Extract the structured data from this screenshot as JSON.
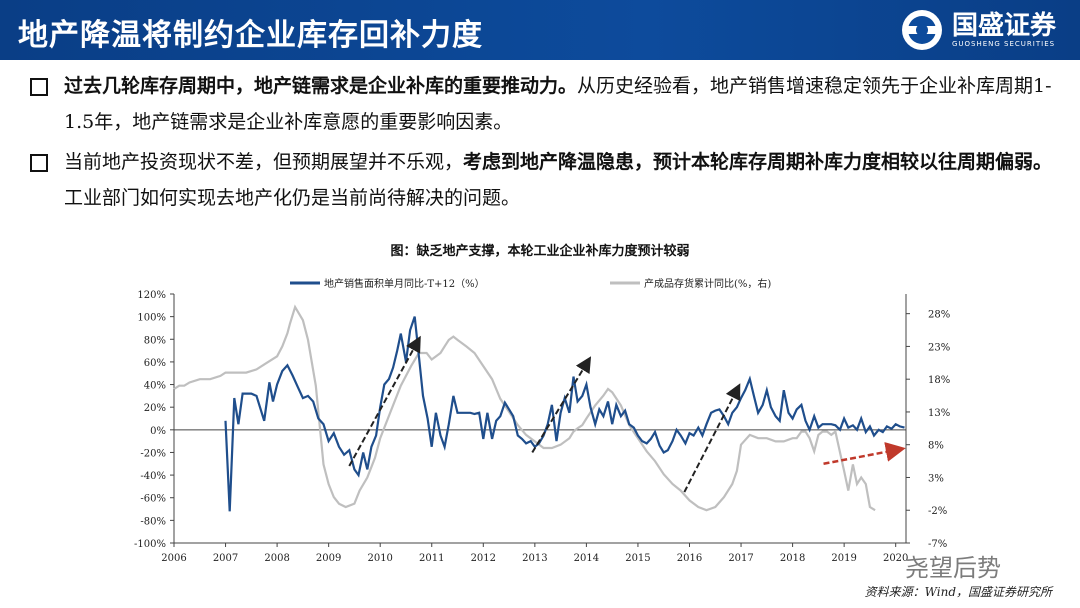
{
  "header": {
    "title": "地产降温将制约企业库存回补力度"
  },
  "logo": {
    "name_cn": "国盛证券",
    "name_en": "GUOSHENG SECURITIES"
  },
  "bullets": [
    {
      "bold": "过去几轮库存周期中，地产链需求是企业补库的重要推动力。",
      "rest": "从历史经验看，地产销售增速稳定领先于企业补库周期1-1.5年，地产链需求是企业补库意愿的重要影响因素。"
    },
    {
      "pre": "当前地产投资现状不差，但预期展望并不乐观，",
      "bold": "考虑到地产降温隐患，预计本轮库存周期补库力度相较以往周期偏弱。",
      "rest": "工业部门如何实现去地产化仍是当前尚待解决的问题。"
    }
  ],
  "chart_title": "图：缺乏地产支撑，本轮工业企业补库力度预计较弱",
  "source": "资料来源：Wind，国盛证券研究所",
  "watermark": "尧望后势",
  "colors": {
    "header_bg": "#0d4b9c",
    "series1": "#1f4e8c",
    "series2": "#bfbfbf",
    "arrow_black": "#222222",
    "arrow_red": "#c0392b"
  },
  "chart_data": {
    "type": "line",
    "x_ticks": [
      "2006",
      "2007",
      "2008",
      "2009",
      "2010",
      "2011",
      "2012",
      "2013",
      "2014",
      "2015",
      "2016",
      "2017",
      "2018",
      "2019",
      "2020"
    ],
    "xlim": [
      2006,
      2020.2
    ],
    "y_left": {
      "ylim": [
        -100,
        120
      ],
      "ticks": [
        "120%",
        "100%",
        "80%",
        "60%",
        "40%",
        "20%",
        "0%",
        "-20%",
        "-40%",
        "-60%",
        "-80%",
        "-100%"
      ]
    },
    "y_right": {
      "ylim": [
        -7,
        31
      ],
      "ticks": [
        "28%",
        "23%",
        "18%",
        "13%",
        "8%",
        "3%",
        "-2%",
        "-7%"
      ]
    },
    "series": [
      {
        "name": "地产销售面积单月同比-T+12（%）",
        "axis": "left",
        "points": [
          [
            2007.0,
            8
          ],
          [
            2007.08,
            -72
          ],
          [
            2007.17,
            28
          ],
          [
            2007.25,
            5
          ],
          [
            2007.33,
            32
          ],
          [
            2007.5,
            32
          ],
          [
            2007.6,
            30
          ],
          [
            2007.75,
            8
          ],
          [
            2007.85,
            42
          ],
          [
            2007.92,
            25
          ],
          [
            2008.0,
            40
          ],
          [
            2008.1,
            52
          ],
          [
            2008.2,
            57
          ],
          [
            2008.3,
            48
          ],
          [
            2008.4,
            38
          ],
          [
            2008.5,
            28
          ],
          [
            2008.6,
            30
          ],
          [
            2008.7,
            25
          ],
          [
            2008.8,
            10
          ],
          [
            2008.9,
            5
          ],
          [
            2009.0,
            -10
          ],
          [
            2009.1,
            -3
          ],
          [
            2009.2,
            -15
          ],
          [
            2009.3,
            -22
          ],
          [
            2009.4,
            -18
          ],
          [
            2009.5,
            -35
          ],
          [
            2009.58,
            -40
          ],
          [
            2009.67,
            -20
          ],
          [
            2009.75,
            -35
          ],
          [
            2009.83,
            -15
          ],
          [
            2009.92,
            -5
          ],
          [
            2010.0,
            20
          ],
          [
            2010.08,
            40
          ],
          [
            2010.17,
            45
          ],
          [
            2010.25,
            55
          ],
          [
            2010.33,
            70
          ],
          [
            2010.4,
            85
          ],
          [
            2010.5,
            60
          ],
          [
            2010.58,
            88
          ],
          [
            2010.67,
            100
          ],
          [
            2010.75,
            65
          ],
          [
            2010.83,
            30
          ],
          [
            2010.92,
            10
          ],
          [
            2011.0,
            -15
          ],
          [
            2011.08,
            15
          ],
          [
            2011.17,
            -5
          ],
          [
            2011.25,
            -15
          ],
          [
            2011.33,
            5
          ],
          [
            2011.42,
            30
          ],
          [
            2011.5,
            15
          ],
          [
            2011.58,
            15
          ],
          [
            2011.67,
            15
          ],
          [
            2011.75,
            15
          ],
          [
            2011.83,
            14
          ],
          [
            2011.92,
            15
          ],
          [
            2012.0,
            -8
          ],
          [
            2012.08,
            15
          ],
          [
            2012.17,
            -8
          ],
          [
            2012.25,
            8
          ],
          [
            2012.33,
            12
          ],
          [
            2012.42,
            24
          ],
          [
            2012.5,
            18
          ],
          [
            2012.58,
            12
          ],
          [
            2012.67,
            -5
          ],
          [
            2012.75,
            -8
          ],
          [
            2012.83,
            -12
          ],
          [
            2012.92,
            -10
          ],
          [
            2013.0,
            -15
          ],
          [
            2013.08,
            -12
          ],
          [
            2013.17,
            -5
          ],
          [
            2013.25,
            5
          ],
          [
            2013.33,
            22
          ],
          [
            2013.42,
            -10
          ],
          [
            2013.5,
            15
          ],
          [
            2013.58,
            28
          ],
          [
            2013.67,
            15
          ],
          [
            2013.75,
            47
          ],
          [
            2013.83,
            25
          ],
          [
            2013.92,
            30
          ],
          [
            2014.0,
            40
          ],
          [
            2014.08,
            20
          ],
          [
            2014.17,
            5
          ],
          [
            2014.25,
            18
          ],
          [
            2014.33,
            12
          ],
          [
            2014.42,
            25
          ],
          [
            2014.5,
            5
          ],
          [
            2014.58,
            22
          ],
          [
            2014.67,
            12
          ],
          [
            2014.75,
            17
          ],
          [
            2014.83,
            5
          ],
          [
            2014.92,
            2
          ],
          [
            2015.0,
            -5
          ],
          [
            2015.08,
            -10
          ],
          [
            2015.17,
            -12
          ],
          [
            2015.25,
            -8
          ],
          [
            2015.33,
            -2
          ],
          [
            2015.42,
            -14
          ],
          [
            2015.5,
            -20
          ],
          [
            2015.58,
            -18
          ],
          [
            2015.67,
            -10
          ],
          [
            2015.75,
            0
          ],
          [
            2015.83,
            -5
          ],
          [
            2015.92,
            -12
          ],
          [
            2016.0,
            -3
          ],
          [
            2016.08,
            -5
          ],
          [
            2016.17,
            2
          ],
          [
            2016.25,
            -5
          ],
          [
            2016.33,
            5
          ],
          [
            2016.42,
            15
          ],
          [
            2016.5,
            17
          ],
          [
            2016.58,
            18
          ],
          [
            2016.67,
            12
          ],
          [
            2016.75,
            5
          ],
          [
            2016.83,
            15
          ],
          [
            2016.92,
            20
          ],
          [
            2017.0,
            28
          ],
          [
            2017.08,
            35
          ],
          [
            2017.17,
            45
          ],
          [
            2017.25,
            30
          ],
          [
            2017.33,
            15
          ],
          [
            2017.42,
            22
          ],
          [
            2017.5,
            35
          ],
          [
            2017.58,
            20
          ],
          [
            2017.67,
            12
          ],
          [
            2017.75,
            8
          ],
          [
            2017.83,
            35
          ],
          [
            2017.92,
            15
          ],
          [
            2018.0,
            10
          ],
          [
            2018.08,
            18
          ],
          [
            2018.17,
            22
          ],
          [
            2018.25,
            8
          ],
          [
            2018.33,
            0
          ],
          [
            2018.42,
            12
          ],
          [
            2018.5,
            2
          ],
          [
            2018.58,
            5
          ],
          [
            2018.67,
            5
          ],
          [
            2018.75,
            5
          ],
          [
            2018.83,
            4
          ],
          [
            2018.92,
            0
          ],
          [
            2019.0,
            10
          ],
          [
            2019.08,
            2
          ],
          [
            2019.17,
            4
          ],
          [
            2019.25,
            0
          ],
          [
            2019.33,
            10
          ],
          [
            2019.42,
            -2
          ],
          [
            2019.5,
            3
          ],
          [
            2019.58,
            -5
          ],
          [
            2019.67,
            0
          ],
          [
            2019.75,
            -2
          ],
          [
            2019.83,
            3
          ],
          [
            2019.92,
            1
          ],
          [
            2020.0,
            5
          ],
          [
            2020.08,
            3
          ],
          [
            2020.17,
            2
          ]
        ]
      },
      {
        "name": "产成品存货累计同比(%，右)",
        "axis": "right",
        "points": [
          [
            2006.0,
            16.5
          ],
          [
            2006.1,
            17
          ],
          [
            2006.2,
            17
          ],
          [
            2006.3,
            17.5
          ],
          [
            2006.5,
            18
          ],
          [
            2006.7,
            18
          ],
          [
            2006.9,
            18.5
          ],
          [
            2007.0,
            19
          ],
          [
            2007.2,
            19
          ],
          [
            2007.4,
            19
          ],
          [
            2007.6,
            19.5
          ],
          [
            2007.8,
            20.5
          ],
          [
            2008.0,
            21.5
          ],
          [
            2008.1,
            23
          ],
          [
            2008.2,
            25
          ],
          [
            2008.25,
            26.5
          ],
          [
            2008.35,
            29
          ],
          [
            2008.5,
            27
          ],
          [
            2008.6,
            24
          ],
          [
            2008.75,
            17
          ],
          [
            2008.9,
            5
          ],
          [
            2009.0,
            2
          ],
          [
            2009.1,
            0
          ],
          [
            2009.2,
            -1
          ],
          [
            2009.33,
            -1.5
          ],
          [
            2009.5,
            -1
          ],
          [
            2009.6,
            1
          ],
          [
            2009.75,
            3
          ],
          [
            2009.9,
            6
          ],
          [
            2010.0,
            9
          ],
          [
            2010.2,
            13
          ],
          [
            2010.4,
            17
          ],
          [
            2010.6,
            20
          ],
          [
            2010.75,
            22
          ],
          [
            2010.9,
            22
          ],
          [
            2011.0,
            21
          ],
          [
            2011.17,
            22
          ],
          [
            2011.25,
            23
          ],
          [
            2011.33,
            24
          ],
          [
            2011.42,
            24.5
          ],
          [
            2011.5,
            24
          ],
          [
            2011.67,
            23
          ],
          [
            2011.83,
            22
          ],
          [
            2012.0,
            20
          ],
          [
            2012.17,
            18
          ],
          [
            2012.33,
            15
          ],
          [
            2012.5,
            13
          ],
          [
            2012.67,
            11
          ],
          [
            2012.83,
            9.5
          ],
          [
            2013.0,
            8.5
          ],
          [
            2013.17,
            7.5
          ],
          [
            2013.33,
            7.5
          ],
          [
            2013.5,
            8
          ],
          [
            2013.67,
            9
          ],
          [
            2013.75,
            10
          ],
          [
            2013.83,
            10.5
          ],
          [
            2013.92,
            11
          ],
          [
            2014.0,
            12
          ],
          [
            2014.17,
            14
          ],
          [
            2014.33,
            15.5
          ],
          [
            2014.42,
            16.5
          ],
          [
            2014.5,
            16
          ],
          [
            2014.67,
            14
          ],
          [
            2014.83,
            11
          ],
          [
            2015.0,
            9
          ],
          [
            2015.17,
            7
          ],
          [
            2015.33,
            5.5
          ],
          [
            2015.5,
            3.5
          ],
          [
            2015.67,
            2
          ],
          [
            2015.83,
            1
          ],
          [
            2016.0,
            -0.5
          ],
          [
            2016.17,
            -1.5
          ],
          [
            2016.33,
            -2
          ],
          [
            2016.5,
            -1.5
          ],
          [
            2016.67,
            0
          ],
          [
            2016.83,
            2
          ],
          [
            2016.92,
            4
          ],
          [
            2017.0,
            8
          ],
          [
            2017.17,
            9.5
          ],
          [
            2017.33,
            9
          ],
          [
            2017.5,
            9
          ],
          [
            2017.67,
            8.5
          ],
          [
            2017.83,
            8.5
          ],
          [
            2018.0,
            9
          ],
          [
            2018.08,
            9
          ],
          [
            2018.17,
            10
          ],
          [
            2018.25,
            10
          ],
          [
            2018.33,
            9
          ],
          [
            2018.42,
            7
          ],
          [
            2018.5,
            9.5
          ],
          [
            2018.58,
            10
          ],
          [
            2018.67,
            10
          ],
          [
            2018.75,
            9.5
          ],
          [
            2018.83,
            10
          ],
          [
            2019.0,
            4
          ],
          [
            2019.08,
            1
          ],
          [
            2019.17,
            5
          ],
          [
            2019.25,
            2
          ],
          [
            2019.33,
            3
          ],
          [
            2019.42,
            2
          ],
          [
            2019.5,
            -1.5
          ],
          [
            2019.6,
            -2
          ]
        ]
      }
    ],
    "arrows_black": [
      [
        [
          2009.4,
          -32
        ],
        [
          2010.75,
          80
        ]
      ],
      [
        [
          2012.95,
          -20
        ],
        [
          2014.05,
          62
        ]
      ],
      [
        [
          2015.9,
          -55
        ],
        [
          2016.95,
          38
        ]
      ]
    ],
    "arrows_red": [
      [
        [
          2018.6,
          -30
        ],
        [
          2020.1,
          -17
        ]
      ]
    ],
    "legend_position": "top"
  }
}
